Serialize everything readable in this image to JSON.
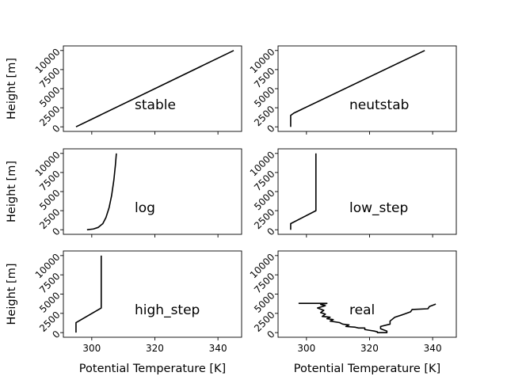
{
  "chart_data": {
    "type": "line",
    "layout": "3x2 grid",
    "shared_x": true,
    "xlabel": "Potential Temperature [K]",
    "ylabel": "Height [m]",
    "xlim": [
      291,
      347.5
    ],
    "ylim": [
      -600,
      10600
    ],
    "xticks": [
      300,
      320,
      340
    ],
    "yticks": [
      0,
      2500,
      5000,
      7500,
      10000
    ],
    "grid": false,
    "panels": [
      {
        "label": "stable",
        "x": [
          295,
          345
        ],
        "y": [
          0,
          10000
        ]
      },
      {
        "label": "neutstab",
        "x": [
          295,
          295,
          296,
          337.5
        ],
        "y": [
          0,
          1500,
          1800,
          10000
        ]
      },
      {
        "label": "log",
        "x": [
          298.5,
          300.5,
          302,
          303.5,
          304.5,
          305.5,
          306.3,
          307,
          307.5,
          307.8
        ],
        "y": [
          0,
          100,
          300,
          800,
          1600,
          2900,
          4500,
          6500,
          8500,
          10000
        ]
      },
      {
        "label": "low_step",
        "x": [
          295,
          295,
          303,
          303
        ],
        "y": [
          0,
          800,
          2500,
          10000
        ]
      },
      {
        "label": "high_step",
        "x": [
          295,
          295,
          303,
          303
        ],
        "y": [
          0,
          1300,
          3200,
          10000
        ]
      },
      {
        "label": "real",
        "x": [
          297.5,
          306.5,
          304.5,
          306,
          303.5,
          305.5,
          304.5,
          306,
          305,
          307.5,
          306.5,
          308.5,
          307.5,
          310.5,
          311.5,
          313.5,
          312.5,
          315.5,
          316.5,
          318.5,
          318.5,
          320,
          321.5,
          322.5,
          322.5,
          325.5,
          325.5,
          323.5,
          323.5,
          326.5,
          326.5,
          328,
          331,
          333,
          333.5,
          338.5,
          339,
          341
        ],
        "y": [
          3800,
          3800,
          3650,
          3500,
          3200,
          2900,
          2600,
          2400,
          2100,
          2000,
          1800,
          1700,
          1500,
          1300,
          1100,
          1000,
          800,
          700,
          600,
          600,
          400,
          300,
          200,
          100,
          0,
          0,
          200,
          500,
          800,
          1100,
          1500,
          2000,
          2400,
          2700,
          3000,
          3100,
          3400,
          3700
        ]
      }
    ]
  }
}
